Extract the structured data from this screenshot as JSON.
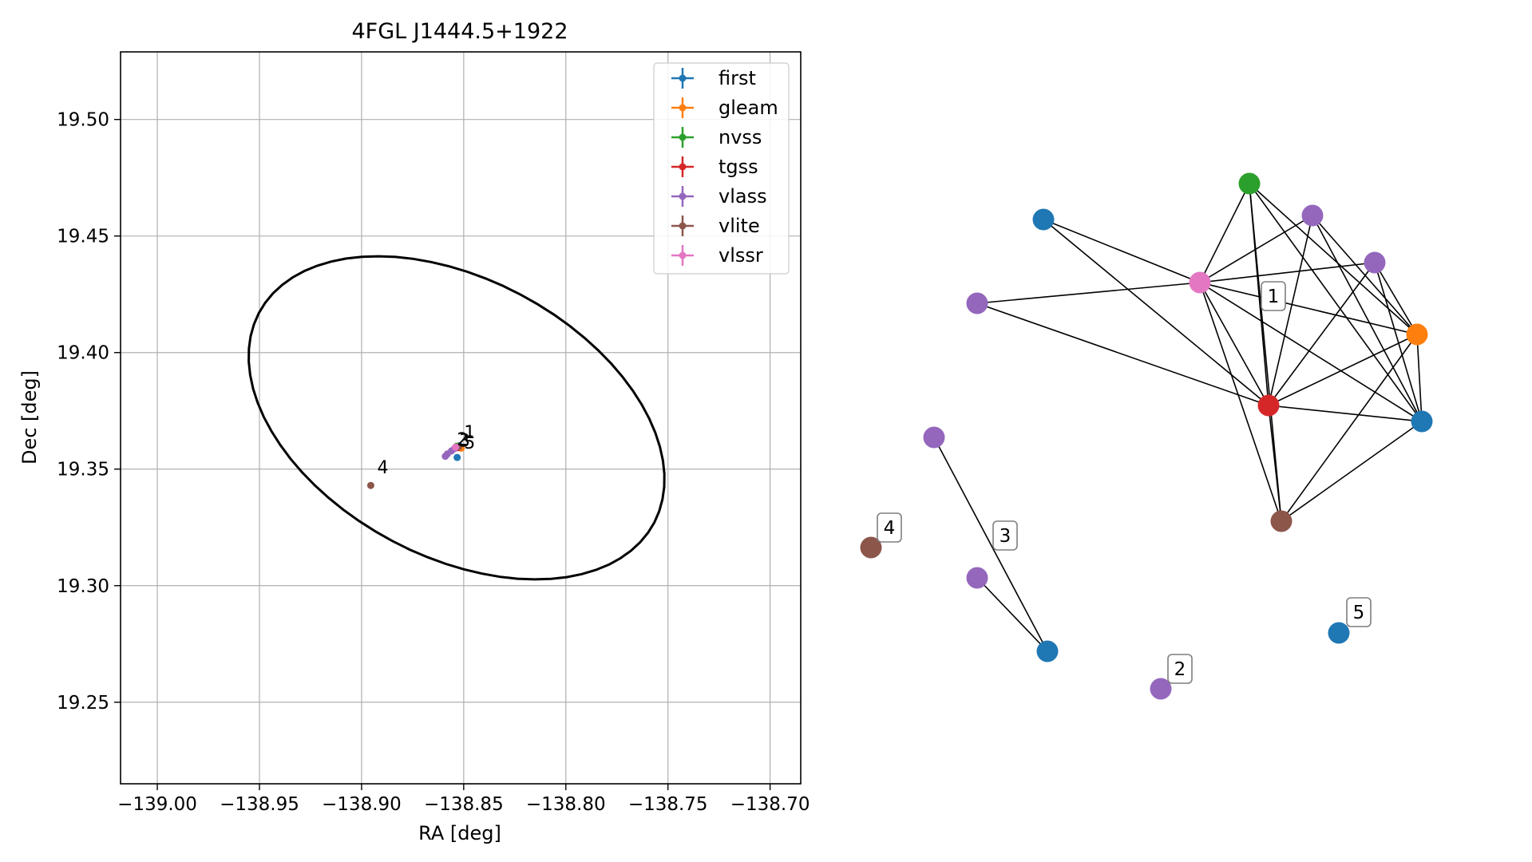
{
  "chart_data": [
    {
      "type": "scatter",
      "title": "4FGL J1444.5+1922",
      "xlabel": "RA [deg]",
      "ylabel": "Dec [deg]",
      "xlim": [
        -139.018,
        -138.685
      ],
      "ylim": [
        19.215,
        19.529
      ],
      "xticks": [
        -139.0,
        -138.95,
        -138.9,
        -138.85,
        -138.8,
        -138.75,
        -138.7
      ],
      "xtick_labels": [
        "−139.00",
        "−138.95",
        "−138.90",
        "−138.85",
        "−138.80",
        "−138.75",
        "−138.70"
      ],
      "yticks": [
        19.25,
        19.3,
        19.35,
        19.4,
        19.45,
        19.5
      ],
      "ytick_labels": [
        "19.25",
        "19.30",
        "19.35",
        "19.40",
        "19.45",
        "19.50"
      ],
      "grid": true,
      "legend": "top-right",
      "series": [
        {
          "name": "first",
          "color": "#1f77b4",
          "points": [
            [
              -138.8532,
              19.355
            ],
            [
              -138.8521,
              19.36
            ]
          ]
        },
        {
          "name": "gleam",
          "color": "#ff7f0e",
          "points": [
            [
              -138.8512,
              19.359
            ]
          ]
        },
        {
          "name": "nvss",
          "color": "#2ca02c",
          "points": [
            [
              -138.8535,
              19.3598
            ]
          ]
        },
        {
          "name": "tgss",
          "color": "#d62728",
          "points": [
            [
              -138.853,
              19.3592
            ]
          ]
        },
        {
          "name": "vlass",
          "color": "#9467bd",
          "points": [
            [
              -138.859,
              19.3555
            ],
            [
              -138.858,
              19.3565
            ],
            [
              -138.856,
              19.3578
            ],
            [
              -138.8545,
              19.3588
            ]
          ]
        },
        {
          "name": "vlite",
          "color": "#8c564b",
          "points": [
            [
              -138.8955,
              19.343
            ],
            [
              -138.8525,
              19.3596
            ]
          ]
        },
        {
          "name": "vlssr",
          "color": "#e377c2",
          "points": [
            [
              -138.854,
              19.3594
            ]
          ]
        }
      ],
      "annotations": [
        {
          "text": "1",
          "x": -138.851,
          "y": 19.3625
        },
        {
          "text": "2",
          "x": -138.8545,
          "y": 19.3595
        },
        {
          "text": "3",
          "x": -138.8535,
          "y": 19.359
        },
        {
          "text": "5",
          "x": -138.851,
          "y": 19.3582
        },
        {
          "text": "4",
          "x": -138.8935,
          "y": 19.3475
        }
      ],
      "ellipse": {
        "ra_center": -138.8535,
        "dec_center": 19.372,
        "semi_major": 0.107,
        "semi_minor": 0.061,
        "angle_deg": -22
      }
    },
    {
      "type": "network",
      "nodes": [
        {
          "id": "n1",
          "color": "#1f77b4"
        },
        {
          "id": "n2",
          "color": "#2ca02c"
        },
        {
          "id": "n3",
          "color": "#9467bd"
        },
        {
          "id": "n4",
          "color": "#9467bd"
        },
        {
          "id": "n5",
          "color": "#e377c2"
        },
        {
          "id": "n6",
          "color": "#9467bd"
        },
        {
          "id": "n7",
          "color": "#ff7f0e"
        },
        {
          "id": "n8",
          "color": "#d62728"
        },
        {
          "id": "n9",
          "color": "#1f77b4"
        },
        {
          "id": "n10",
          "color": "#9467bd"
        },
        {
          "id": "n11",
          "color": "#8c564b"
        },
        {
          "id": "n12",
          "color": "#8c564b"
        },
        {
          "id": "n13",
          "color": "#9467bd"
        },
        {
          "id": "n14",
          "color": "#1f77b4"
        },
        {
          "id": "n15",
          "color": "#9467bd"
        },
        {
          "id": "n16",
          "color": "#1f77b4"
        }
      ],
      "edges": [
        [
          "n1",
          "n5"
        ],
        [
          "n1",
          "n8"
        ],
        [
          "n6",
          "n5"
        ],
        [
          "n6",
          "n8"
        ],
        [
          "n5",
          "n2"
        ],
        [
          "n5",
          "n3"
        ],
        [
          "n5",
          "n4"
        ],
        [
          "n5",
          "n7"
        ],
        [
          "n5",
          "n8"
        ],
        [
          "n5",
          "n9"
        ],
        [
          "n5",
          "n11"
        ],
        [
          "n2",
          "n8"
        ],
        [
          "n2",
          "n11"
        ],
        [
          "n2",
          "n7"
        ],
        [
          "n2",
          "n9"
        ],
        [
          "n3",
          "n8"
        ],
        [
          "n3",
          "n7"
        ],
        [
          "n3",
          "n9"
        ],
        [
          "n4",
          "n8"
        ],
        [
          "n4",
          "n7"
        ],
        [
          "n4",
          "n9"
        ],
        [
          "n8",
          "n7"
        ],
        [
          "n8",
          "n9"
        ],
        [
          "n8",
          "n11"
        ],
        [
          "n7",
          "n9"
        ],
        [
          "n7",
          "n11"
        ],
        [
          "n9",
          "n11"
        ],
        [
          "n10",
          "n14"
        ],
        [
          "n13",
          "n14"
        ]
      ],
      "labels": [
        {
          "text": "1",
          "near": "n8"
        },
        {
          "text": "3",
          "near": "n14"
        },
        {
          "text": "4",
          "near": "n12"
        },
        {
          "text": "2",
          "near": "n15"
        },
        {
          "text": "5",
          "near": "n16"
        }
      ]
    }
  ]
}
